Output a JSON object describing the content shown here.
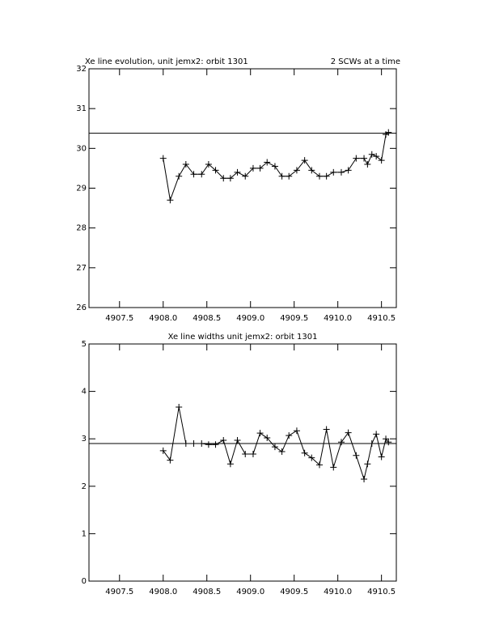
{
  "chart_data": [
    {
      "type": "line",
      "title": "Xe line evolution, unit jemx2: orbit 1301",
      "annotation": "2 SCWs at a time",
      "x": [
        4908.0,
        4908.08,
        4908.18,
        4908.26,
        4908.35,
        4908.44,
        4908.52,
        4908.6,
        4908.69,
        4908.77,
        4908.85,
        4908.94,
        4909.03,
        4909.11,
        4909.19,
        4909.28,
        4909.36,
        4909.44,
        4909.53,
        4909.62,
        4909.7,
        4909.79,
        4909.87,
        4909.95,
        4910.04,
        4910.12,
        4910.21,
        4910.3,
        4910.34,
        4910.39,
        4910.44,
        4910.5,
        4910.55,
        4910.58
      ],
      "values": [
        29.75,
        28.7,
        29.3,
        29.6,
        29.35,
        29.35,
        29.6,
        29.45,
        29.25,
        29.25,
        29.4,
        29.3,
        29.5,
        29.5,
        29.65,
        29.55,
        29.3,
        29.3,
        29.45,
        29.7,
        29.45,
        29.3,
        29.3,
        29.4,
        29.4,
        29.45,
        29.75,
        29.75,
        29.6,
        29.85,
        29.8,
        29.7,
        30.35,
        30.4
      ],
      "reference_line": 30.38,
      "color": "#000000",
      "xlim": [
        4907.15,
        4910.67
      ],
      "ylim": [
        26,
        32
      ],
      "xticks": [
        {
          "value": 4907.5,
          "label": "4907.5"
        },
        {
          "value": 4908.0,
          "label": "4908.0"
        },
        {
          "value": 4908.5,
          "label": "4908.5"
        },
        {
          "value": 4909.0,
          "label": "4909.0"
        },
        {
          "value": 4909.5,
          "label": "4909.5"
        },
        {
          "value": 4910.0,
          "label": "4910.0"
        },
        {
          "value": 4910.5,
          "label": "4910.5"
        }
      ],
      "yticks": [
        26,
        27,
        28,
        29,
        30,
        31,
        32
      ]
    },
    {
      "type": "line",
      "title": "Xe line widths unit jemx2: orbit 1301",
      "x": [
        4908.0,
        4908.08,
        4908.18,
        4908.26,
        4908.35,
        4908.44,
        4908.52,
        4908.6,
        4908.69,
        4908.77,
        4908.85,
        4908.94,
        4909.03,
        4909.11,
        4909.19,
        4909.28,
        4909.36,
        4909.44,
        4909.53,
        4909.62,
        4909.7,
        4909.79,
        4909.87,
        4909.95,
        4910.04,
        4910.12,
        4910.21,
        4910.3,
        4910.34,
        4910.39,
        4910.44,
        4910.5,
        4910.55,
        4910.58
      ],
      "values": [
        2.75,
        2.55,
        3.67,
        2.9,
        2.9,
        2.9,
        2.88,
        2.88,
        2.97,
        2.47,
        2.97,
        2.68,
        2.68,
        3.12,
        3.02,
        2.83,
        2.73,
        3.07,
        3.17,
        2.7,
        2.6,
        2.45,
        3.2,
        2.4,
        2.93,
        3.13,
        2.65,
        2.15,
        2.47,
        2.9,
        3.1,
        2.62,
        3.0,
        2.93
      ],
      "reference_line": 2.9,
      "color": "#000000",
      "xlim": [
        4907.15,
        4910.67
      ],
      "ylim": [
        0,
        5
      ],
      "xticks": [
        {
          "value": 4907.5,
          "label": "4907.5"
        },
        {
          "value": 4908.0,
          "label": "4908.0"
        },
        {
          "value": 4908.5,
          "label": "4908.5"
        },
        {
          "value": 4909.0,
          "label": "4909.0"
        },
        {
          "value": 4909.5,
          "label": "4909.5"
        },
        {
          "value": 4910.0,
          "label": "4910.0"
        },
        {
          "value": 4910.5,
          "label": "4910.5"
        }
      ],
      "yticks": [
        0,
        1,
        2,
        3,
        4,
        5
      ]
    }
  ]
}
